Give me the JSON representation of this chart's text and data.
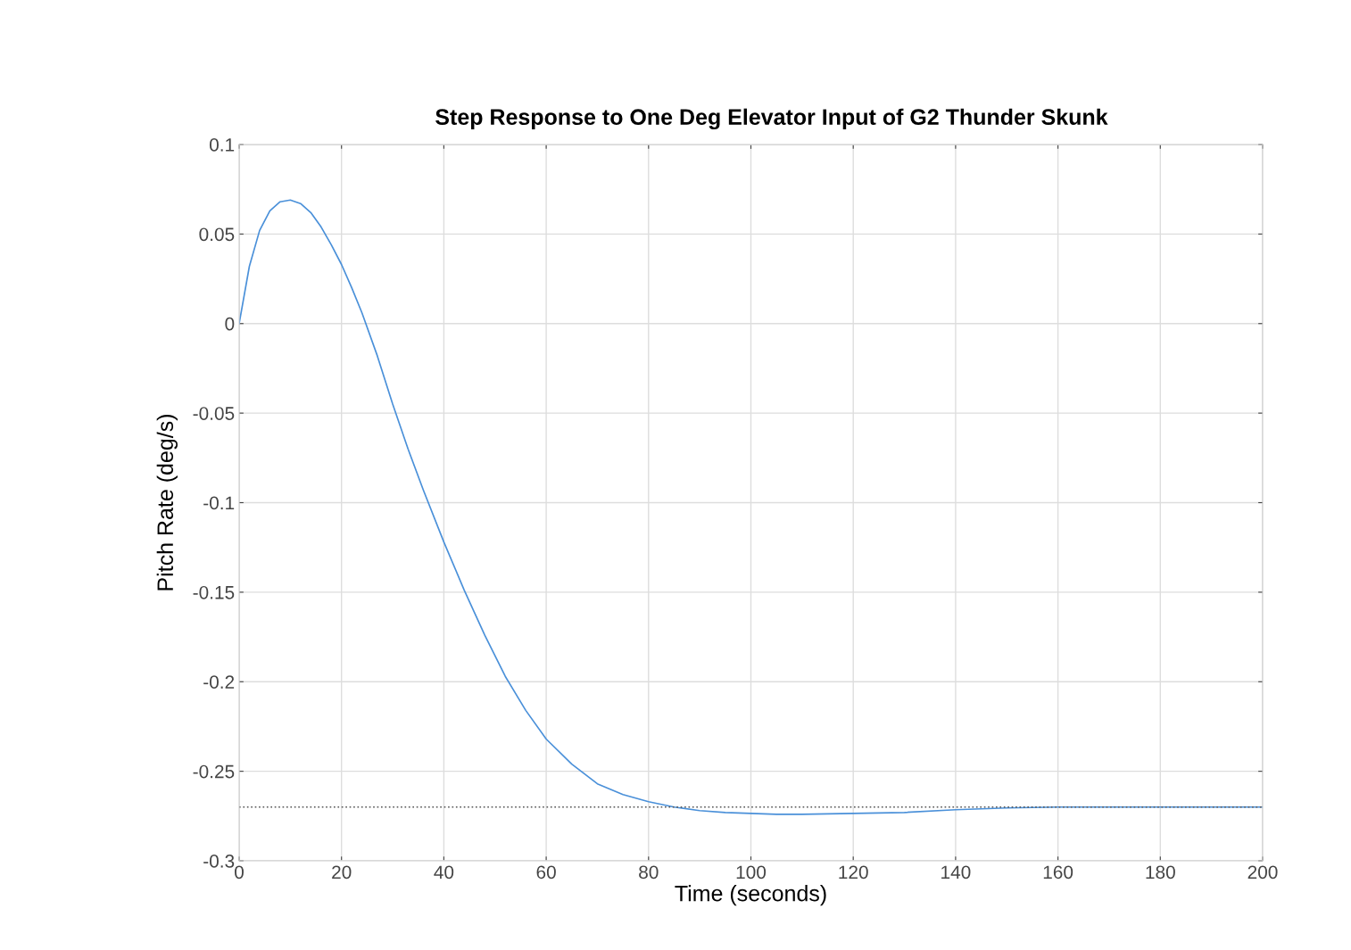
{
  "chart_data": {
    "type": "line",
    "title": "Step Response to One Deg Elevator Input of G2 Thunder Skunk",
    "xlabel": "Time (seconds)",
    "ylabel": "Pitch Rate (deg/s)",
    "x": [
      0,
      2,
      4,
      6,
      8,
      10,
      12,
      14,
      16,
      18,
      20,
      22,
      24,
      27,
      30,
      33,
      36,
      40,
      44,
      48,
      52,
      56,
      60,
      65,
      70,
      75,
      80,
      85,
      90,
      95,
      100,
      105,
      110,
      120,
      130,
      140,
      150,
      160,
      180,
      200
    ],
    "series": [
      {
        "color": "#4a90d9",
        "values": [
          0,
          0.032,
          0.052,
          0.063,
          0.068,
          0.069,
          0.067,
          0.062,
          0.054,
          0.044,
          0.033,
          0.02,
          0.006,
          -0.018,
          -0.045,
          -0.07,
          -0.093,
          -0.122,
          -0.149,
          -0.174,
          -0.197,
          -0.216,
          -0.232,
          -0.246,
          -0.257,
          -0.263,
          -0.267,
          -0.27,
          -0.272,
          -0.273,
          -0.2735,
          -0.274,
          -0.274,
          -0.2735,
          -0.273,
          -0.2715,
          -0.2705,
          -0.27,
          -0.27,
          -0.27
        ]
      }
    ],
    "ref_lines": [
      {
        "axis": "y",
        "value": -0.27,
        "color": "#555555",
        "line_style": "dotted"
      }
    ],
    "xlim": [
      0,
      200
    ],
    "xticks": [
      0,
      20,
      40,
      60,
      80,
      100,
      120,
      140,
      160,
      180,
      200
    ],
    "ylim": [
      -0.3,
      0.1
    ],
    "yticks": [
      -0.3,
      -0.25,
      -0.2,
      -0.15,
      -0.1,
      -0.05,
      0,
      0.05,
      0.1
    ],
    "grid": true,
    "line_style": "solid",
    "marker": "none"
  }
}
